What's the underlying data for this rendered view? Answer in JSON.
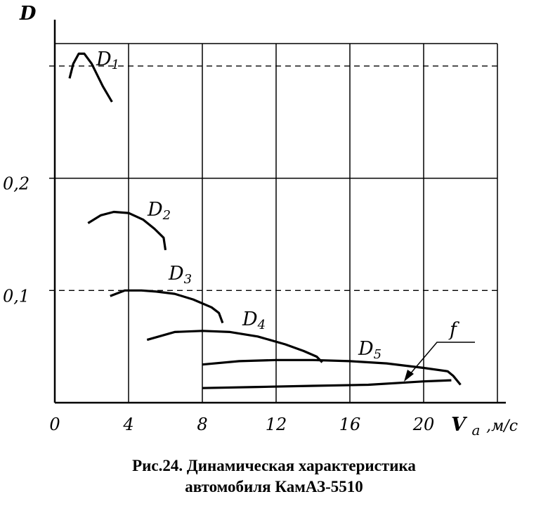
{
  "chart_data": {
    "type": "line",
    "ylabel": "D",
    "xlabel_main": "V",
    "xlabel_sub": "a",
    "xlabel_unit": ",м/с",
    "xlim": [
      0,
      24
    ],
    "ylim": [
      0,
      0.32
    ],
    "x_ticks": [
      "0",
      "4",
      "8",
      "12",
      "16",
      "20"
    ],
    "x_tick_values": [
      0,
      4,
      8,
      12,
      16,
      20
    ],
    "y_ticks": [
      "0,1",
      "0,2"
    ],
    "y_tick_values": [
      0.1,
      0.2
    ],
    "grid": true,
    "dashed_reference_lines": [
      0.1,
      0.3
    ],
    "series": [
      {
        "name": "D1",
        "main": "D",
        "sub": "1",
        "x": [
          0.8,
          1.0,
          1.3,
          1.6,
          2.0,
          2.6,
          3.1
        ],
        "y": [
          0.289,
          0.302,
          0.311,
          0.311,
          0.302,
          0.282,
          0.268
        ]
      },
      {
        "name": "D2",
        "main": "D",
        "sub": "2",
        "x": [
          1.8,
          2.5,
          3.2,
          4.0,
          4.8,
          5.4,
          5.9,
          6.0
        ],
        "y": [
          0.16,
          0.167,
          0.17,
          0.169,
          0.163,
          0.155,
          0.147,
          0.136
        ]
      },
      {
        "name": "D3",
        "main": "D",
        "sub": "3",
        "x": [
          3.0,
          3.8,
          4.7,
          5.5,
          6.5,
          7.5,
          8.5,
          8.9,
          9.1
        ],
        "y": [
          0.095,
          0.1,
          0.1,
          0.099,
          0.097,
          0.092,
          0.085,
          0.08,
          0.071
        ]
      },
      {
        "name": "D4",
        "main": "D",
        "sub": "4",
        "x": [
          5.0,
          6.5,
          8.0,
          9.5,
          11.0,
          12.5,
          13.5,
          14.2,
          14.5
        ],
        "y": [
          0.056,
          0.063,
          0.064,
          0.063,
          0.059,
          0.052,
          0.046,
          0.041,
          0.036
        ]
      },
      {
        "name": "D5",
        "main": "D",
        "sub": "5",
        "x": [
          8.0,
          10.0,
          12.0,
          14.0,
          16.0,
          18.0,
          20.0,
          21.3,
          21.6,
          22.0
        ],
        "y": [
          0.034,
          0.037,
          0.038,
          0.038,
          0.037,
          0.035,
          0.031,
          0.028,
          0.024,
          0.016
        ]
      },
      {
        "name": "f",
        "main": "f",
        "sub": "",
        "x": [
          8.0,
          11.0,
          14.0,
          17.0,
          19.0,
          20.0,
          21.5
        ],
        "y": [
          0.013,
          0.014,
          0.015,
          0.016,
          0.018,
          0.019,
          0.02
        ]
      }
    ]
  },
  "caption": {
    "line1": "Рис.24. Динамическая характеристика",
    "line2": "автомобиля КамАЗ-5510"
  }
}
